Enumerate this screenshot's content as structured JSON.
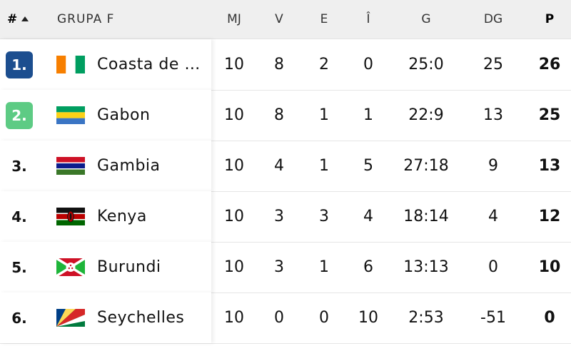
{
  "header": {
    "rank_label": "#",
    "group_label": "GRUPA F",
    "cols": [
      "MJ",
      "V",
      "E",
      "Î",
      "G",
      "DG",
      "P"
    ]
  },
  "rows": [
    {
      "rank": "1.",
      "team": "Coasta de …",
      "flag": "flag-cote-divoire-icon",
      "mj": "10",
      "v": "8",
      "e": "2",
      "i": "0",
      "g": "25:0",
      "dg": "25",
      "p": "26"
    },
    {
      "rank": "2.",
      "team": "Gabon",
      "flag": "flag-gabon-icon",
      "mj": "10",
      "v": "8",
      "e": "1",
      "i": "1",
      "g": "22:9",
      "dg": "13",
      "p": "25"
    },
    {
      "rank": "3.",
      "team": "Gambia",
      "flag": "flag-gambia-icon",
      "mj": "10",
      "v": "4",
      "e": "1",
      "i": "5",
      "g": "27:18",
      "dg": "9",
      "p": "13"
    },
    {
      "rank": "4.",
      "team": "Kenya",
      "flag": "flag-kenya-icon",
      "mj": "10",
      "v": "3",
      "e": "3",
      "i": "4",
      "g": "18:14",
      "dg": "4",
      "p": "12"
    },
    {
      "rank": "5.",
      "team": "Burundi",
      "flag": "flag-burundi-icon",
      "mj": "10",
      "v": "3",
      "e": "1",
      "i": "6",
      "g": "13:13",
      "dg": "0",
      "p": "10"
    },
    {
      "rank": "6.",
      "team": "Seychelles",
      "flag": "flag-seychelles-icon",
      "mj": "10",
      "v": "0",
      "e": "0",
      "i": "10",
      "g": "2:53",
      "dg": "-51",
      "p": "0"
    }
  ],
  "colors": {
    "qualify_primary": "#1c4e8f",
    "qualify_secondary": "#5dcb84",
    "header_bg": "#efefef"
  }
}
